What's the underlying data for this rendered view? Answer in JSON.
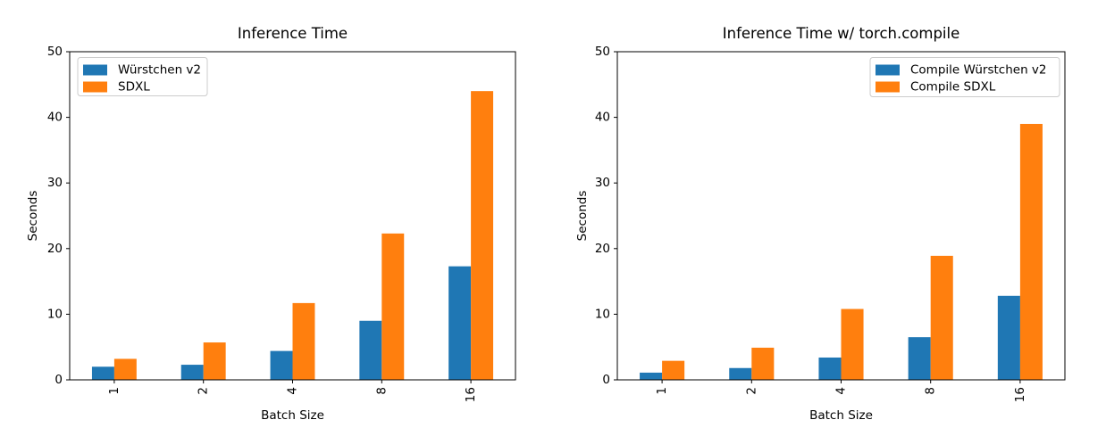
{
  "figure": {
    "background": "#ffffff",
    "spine_color": "#000000",
    "legend_border_color": "#cccccc"
  },
  "chart_data": [
    {
      "type": "bar",
      "title": "Inference Time",
      "xlabel": "Batch Size",
      "ylabel": "Seconds",
      "categories": [
        "1",
        "2",
        "4",
        "8",
        "16"
      ],
      "series": [
        {
          "name": "Würstchen v2",
          "color": "#1f77b4",
          "values": [
            2.0,
            2.3,
            4.4,
            9.0,
            17.3
          ]
        },
        {
          "name": "SDXL",
          "color": "#ff7f0e",
          "values": [
            3.2,
            5.7,
            11.7,
            22.3,
            44.0
          ]
        }
      ],
      "ylim": [
        0,
        50
      ],
      "yticks": [
        0,
        10,
        20,
        30,
        40,
        50
      ],
      "xtick_rotation": 90,
      "grid": false,
      "legend_position": "upper-left"
    },
    {
      "type": "bar",
      "title": "Inference Time w/ torch.compile",
      "xlabel": "Batch Size",
      "ylabel": "Seconds",
      "categories": [
        "1",
        "2",
        "4",
        "8",
        "16"
      ],
      "series": [
        {
          "name": "Compile Würstchen v2",
          "color": "#1f77b4",
          "values": [
            1.1,
            1.8,
            3.4,
            6.5,
            12.8
          ]
        },
        {
          "name": "Compile SDXL",
          "color": "#ff7f0e",
          "values": [
            2.9,
            4.9,
            10.8,
            18.9,
            39.0
          ]
        }
      ],
      "ylim": [
        0,
        50
      ],
      "yticks": [
        0,
        10,
        20,
        30,
        40,
        50
      ],
      "xtick_rotation": 90,
      "grid": false,
      "legend_position": "upper-right"
    }
  ]
}
